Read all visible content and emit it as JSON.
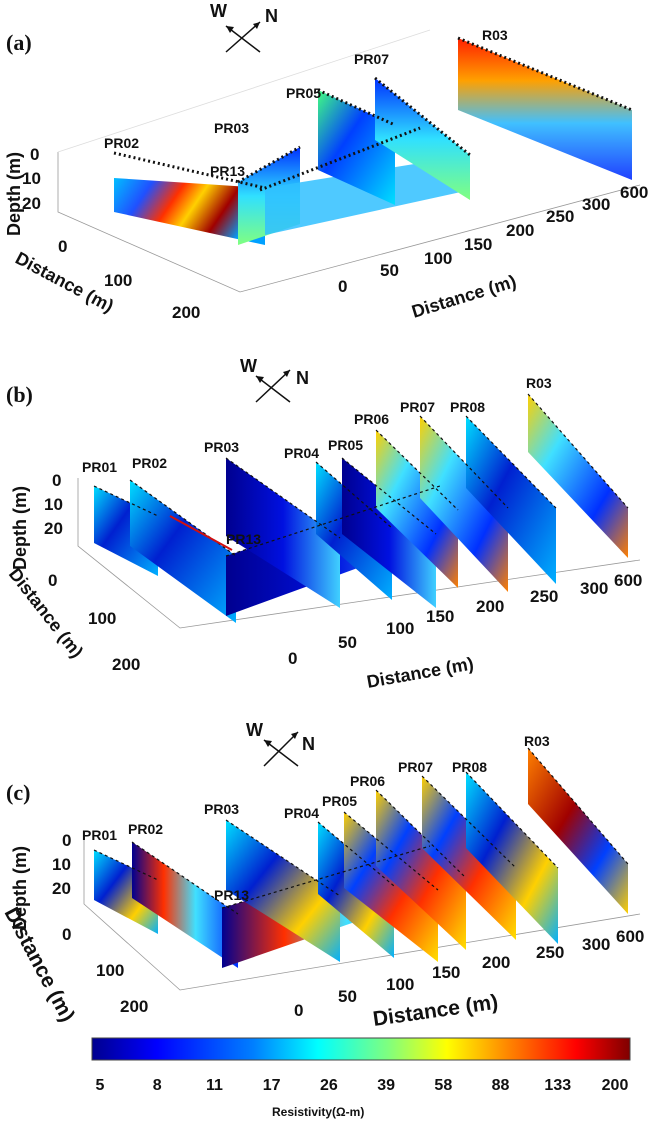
{
  "panels": [
    {
      "label": "(a)",
      "compass": {
        "w": "W",
        "n": "N"
      },
      "depth_axis": {
        "title": "Depth (m)",
        "ticks": [
          "0",
          "10",
          "20"
        ]
      },
      "left_axis": {
        "title": "Distance (m)",
        "ticks": [
          "0",
          "100",
          "200"
        ]
      },
      "right_axis": {
        "title": "Distance (m)",
        "ticks": [
          "0",
          "50",
          "100",
          "150",
          "200",
          "250",
          "300",
          "600"
        ]
      },
      "profiles": [
        "PR02",
        "PR13",
        "PR03",
        "PR05",
        "PR07",
        "R03"
      ]
    },
    {
      "label": "(b)",
      "compass": {
        "w": "W",
        "n": "N"
      },
      "depth_axis": {
        "title": "Depth (m)",
        "ticks": [
          "0",
          "10",
          "20"
        ]
      },
      "left_axis": {
        "title": "Distance (m)",
        "ticks": [
          "0",
          "100",
          "200"
        ]
      },
      "right_axis": {
        "title": "Distance (m)",
        "ticks": [
          "0",
          "50",
          "100",
          "150",
          "200",
          "250",
          "300",
          "600"
        ]
      },
      "profiles": [
        "PR01",
        "PR02",
        "PR13",
        "PR03",
        "PR04",
        "PR05",
        "PR06",
        "PR07",
        "PR08",
        "R03"
      ]
    },
    {
      "label": "(c)",
      "compass": {
        "w": "W",
        "n": "N"
      },
      "depth_axis": {
        "title": "Depth (m)",
        "ticks": [
          "0",
          "10",
          "20"
        ]
      },
      "left_axis": {
        "title": "Distance (m)",
        "ticks": [
          "0",
          "100",
          "200"
        ]
      },
      "right_axis": {
        "title": "Distance (m)",
        "ticks": [
          "0",
          "50",
          "100",
          "150",
          "200",
          "250",
          "300",
          "600"
        ]
      },
      "profiles": [
        "PR01",
        "PR02",
        "PR13",
        "PR03",
        "PR04",
        "PR05",
        "PR06",
        "PR07",
        "PR08",
        "R03"
      ]
    }
  ],
  "colorbar": {
    "title": "Resistivity(Ω-m)",
    "ticks": [
      "5",
      "8",
      "11",
      "17",
      "26",
      "39",
      "58",
      "88",
      "133",
      "200"
    ],
    "colors": [
      "#00008f",
      "#0000ff",
      "#007fff",
      "#00ffff",
      "#7fff7f",
      "#ffff00",
      "#ff7f00",
      "#ff0000",
      "#7f0000"
    ]
  }
}
